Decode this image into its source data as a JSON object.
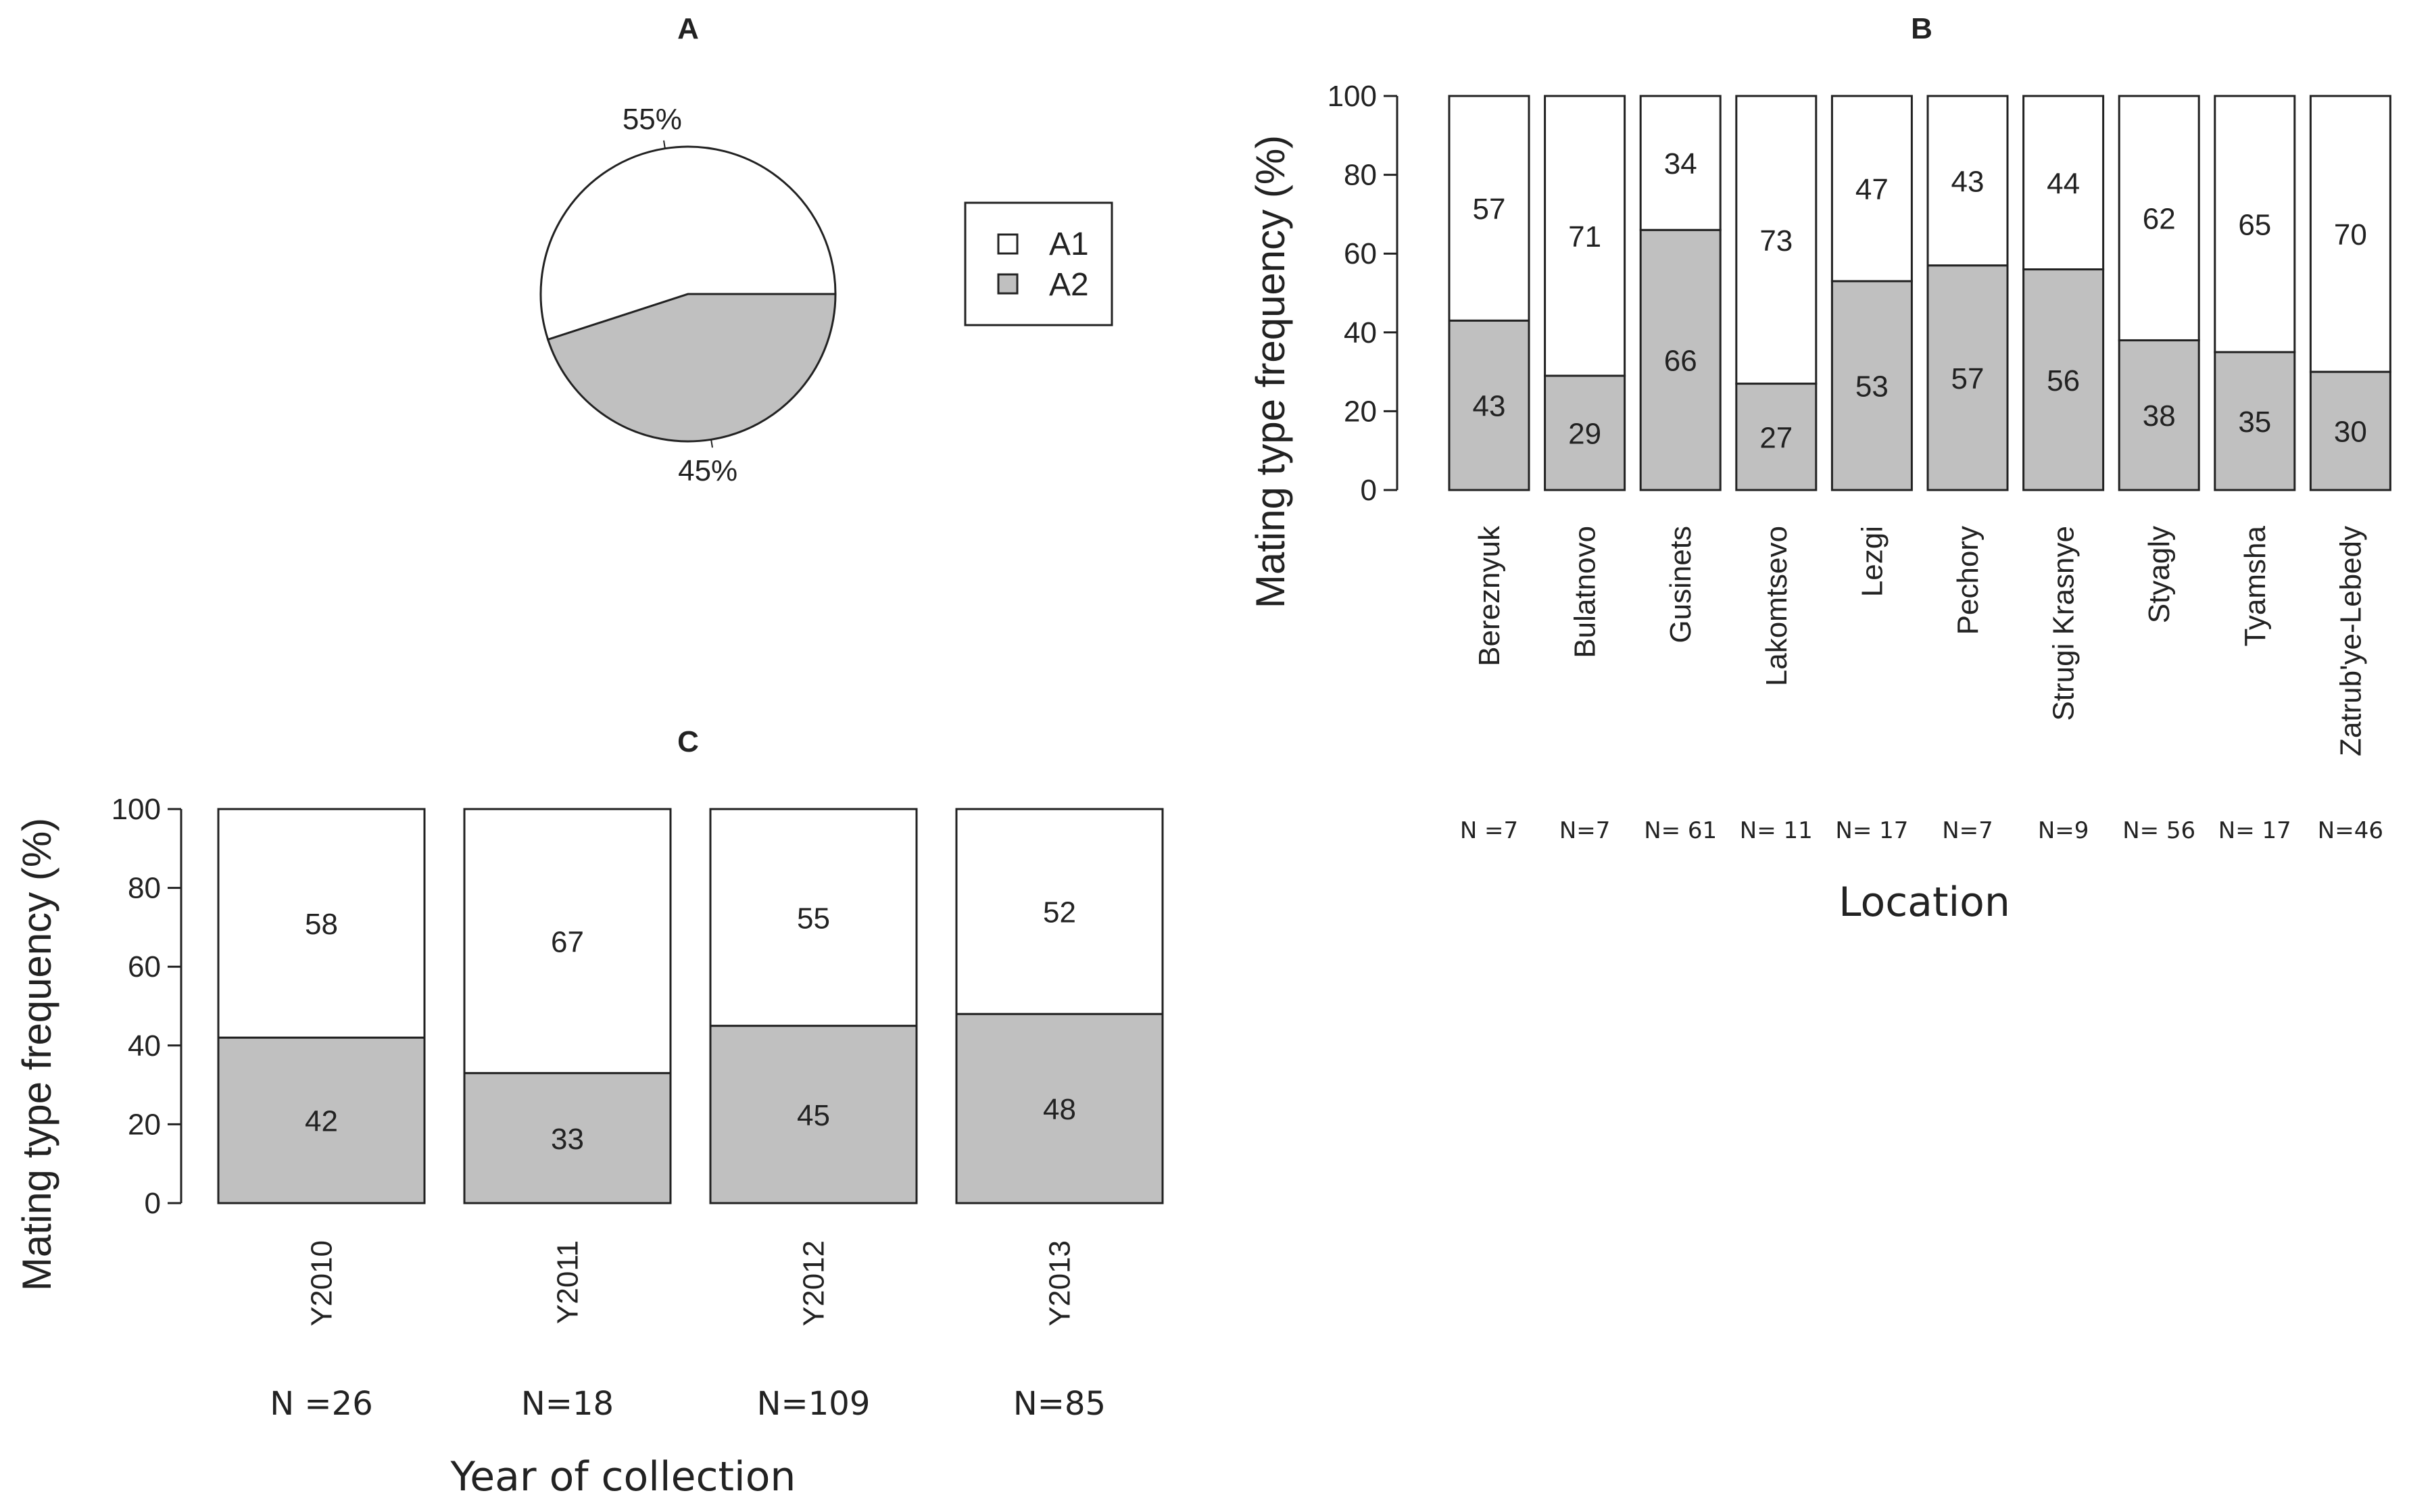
{
  "colors": {
    "A1": "#ffffff",
    "A2": "#c0c0c0",
    "stroke": "#222222"
  },
  "chart_data": [
    {
      "id": "A",
      "type": "pie",
      "title": "A",
      "labels": [
        "A1",
        "A2"
      ],
      "values": [
        55,
        45
      ],
      "value_labels": [
        "55%",
        "45%"
      ],
      "legend": {
        "position": "right",
        "entries": [
          "A1",
          "A2"
        ]
      }
    },
    {
      "id": "B",
      "type": "bar",
      "stacked": true,
      "title": "B",
      "xlabel": "Location",
      "ylabel": "Mating type frequency (%)",
      "ylim": [
        0,
        100
      ],
      "yticks": [
        0,
        20,
        40,
        60,
        80,
        100
      ],
      "categories": [
        "Bereznyuk",
        "Bulatnovo",
        "Gusinets",
        "Lakomtsevo",
        "Lezgi",
        "Pechory",
        "Strugi Krasnye",
        "Styagly",
        "Tyamsha",
        "Zatrub'ye-Lebedy"
      ],
      "sample_sizes": [
        "N =7",
        "N=7",
        "N= 61",
        "N= 11",
        "N= 17",
        "N=7",
        "N=9",
        "N= 56",
        "N= 17",
        "N=46"
      ],
      "series": [
        {
          "name": "A2",
          "values": [
            43,
            29,
            66,
            27,
            53,
            57,
            56,
            38,
            35,
            30
          ]
        },
        {
          "name": "A1",
          "values": [
            57,
            71,
            34,
            73,
            47,
            43,
            44,
            62,
            65,
            70
          ]
        }
      ]
    },
    {
      "id": "C",
      "type": "bar",
      "stacked": true,
      "title": "C",
      "xlabel": "Year of collection",
      "ylabel": "Mating type frequency (%)",
      "ylim": [
        0,
        100
      ],
      "yticks": [
        0,
        20,
        40,
        60,
        80,
        100
      ],
      "categories": [
        "Y2010",
        "Y2011",
        "Y2012",
        "Y2013"
      ],
      "sample_sizes": [
        "N =26",
        "N=18",
        "N=109",
        "N=85"
      ],
      "series": [
        {
          "name": "A2",
          "values": [
            42,
            33,
            45,
            48
          ]
        },
        {
          "name": "A1",
          "values": [
            58,
            67,
            55,
            52
          ]
        }
      ]
    }
  ]
}
